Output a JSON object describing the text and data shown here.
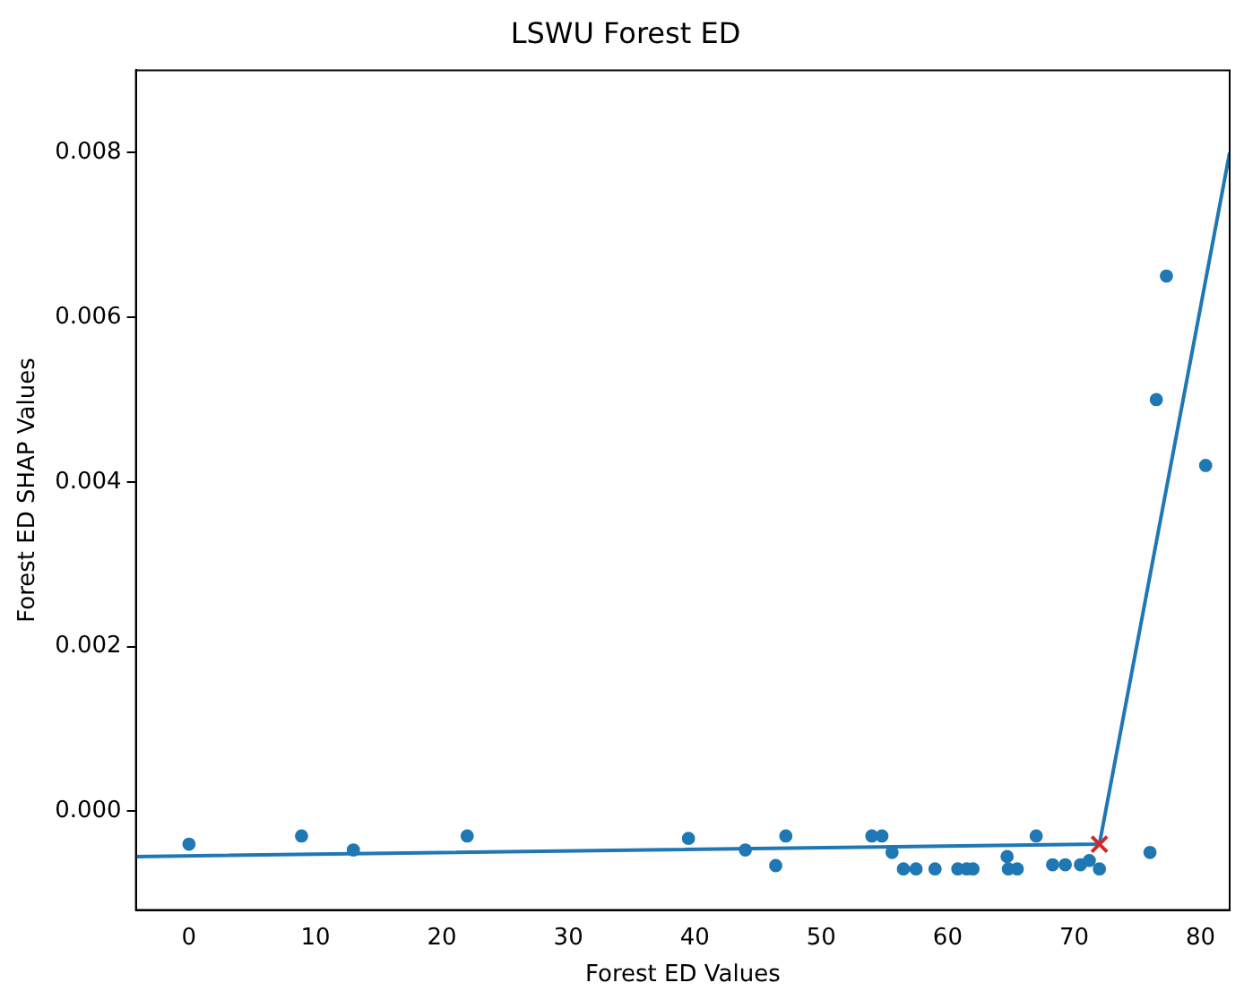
{
  "chart_data": {
    "type": "scatter",
    "title": "LSWU Forest ED",
    "xlabel": "Forest ED Values",
    "ylabel": "Forest ED SHAP Values",
    "xlim": [
      -4.2,
      82.3
    ],
    "ylim": [
      -0.0012,
      0.009
    ],
    "xticks": [
      0,
      10,
      20,
      30,
      40,
      50,
      60,
      70,
      80
    ],
    "yticks": [
      {
        "value": 0,
        "label": "0.000"
      },
      {
        "value": 0.002,
        "label": "0.002"
      },
      {
        "value": 0.004,
        "label": "0.004"
      },
      {
        "value": 0.006,
        "label": "0.006"
      },
      {
        "value": 0.008,
        "label": "0.008"
      }
    ],
    "grid": false,
    "legend": false,
    "marker": "circle",
    "series": [
      {
        "color": "#1f77b4",
        "x": [
          0,
          8.9,
          13,
          22,
          39.5,
          44,
          46.4,
          47.2,
          54,
          54.8,
          55.6,
          56.5,
          57.5,
          59,
          60.8,
          61.5,
          62,
          64.7,
          64.8,
          65.5,
          67,
          68.3,
          69.3,
          70.5,
          71.2,
          72,
          76,
          76.5,
          77.3,
          80.4
        ],
        "values": [
          -0.0004,
          -0.0003,
          -0.00047,
          -0.0003,
          -0.00033,
          -0.00047,
          -0.00066,
          -0.0003,
          -0.0003,
          -0.0003,
          -0.0005,
          -0.0007,
          -0.0007,
          -0.0007,
          -0.0007,
          -0.0007,
          -0.0007,
          -0.00055,
          -0.0007,
          -0.0007,
          -0.0003,
          -0.00065,
          -0.00065,
          -0.00065,
          -0.0006,
          -0.0007,
          -0.0005,
          0.005,
          0.0065,
          0.0042
        ]
      },
      {
        "type": "line",
        "color": "#1f77b4",
        "marker": "none",
        "x": [
          -4.2,
          72,
          82.3
        ],
        "values": [
          -0.00055,
          -0.0004,
          0.008
        ]
      },
      {
        "type": "scatter",
        "color": "#d62728",
        "marker": "cross",
        "x": [
          72
        ],
        "values": [
          -0.0004
        ]
      }
    ]
  }
}
